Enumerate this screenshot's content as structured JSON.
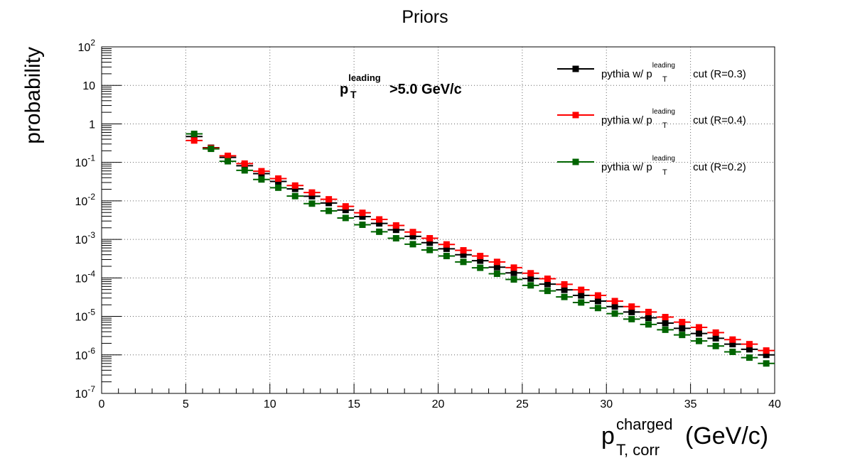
{
  "chart_data": {
    "type": "scatter",
    "title": "Priors",
    "xlabel_base": "p",
    "xlabel_sup": "charged",
    "xlabel_sub": "T, corr",
    "xlabel_units": "(GeV/c)",
    "ylabel": "probability",
    "annotation": {
      "base": "p",
      "sup": "leading",
      "sub": "T",
      "rest": ">5.0 GeV/c"
    },
    "xlim": [
      0,
      40
    ],
    "ylim": [
      1e-07,
      100
    ],
    "yscale": "log",
    "grid": true,
    "legend_position": "top-right",
    "x_ticks": [
      0,
      5,
      10,
      15,
      20,
      25,
      30,
      35,
      40
    ],
    "y_ticks": [
      {
        "value": 1e-07,
        "base": "10",
        "exp": "-7"
      },
      {
        "value": 1e-06,
        "base": "10",
        "exp": "-6"
      },
      {
        "value": 1e-05,
        "base": "10",
        "exp": "-5"
      },
      {
        "value": 0.0001,
        "base": "10",
        "exp": "-4"
      },
      {
        "value": 0.001,
        "base": "10",
        "exp": "-3"
      },
      {
        "value": 0.01,
        "base": "10",
        "exp": "-2"
      },
      {
        "value": 0.1,
        "base": "10",
        "exp": "-1"
      },
      {
        "value": 1,
        "base": "1",
        "exp": ""
      },
      {
        "value": 10,
        "base": "10",
        "exp": ""
      },
      {
        "value": 100,
        "base": "10",
        "exp": "2"
      }
    ],
    "bin_width": 1,
    "x": [
      5.5,
      6.5,
      7.5,
      8.5,
      9.5,
      10.5,
      11.5,
      12.5,
      13.5,
      14.5,
      15.5,
      16.5,
      17.5,
      18.5,
      19.5,
      20.5,
      21.5,
      22.5,
      23.5,
      24.5,
      25.5,
      26.5,
      27.5,
      28.5,
      29.5,
      30.5,
      31.5,
      32.5,
      33.5,
      34.5,
      35.5,
      36.5,
      37.5,
      38.5,
      39.5
    ],
    "series": [
      {
        "legend_base": "pythia w/ p",
        "legend_sup": "leading",
        "legend_sub": "T",
        "legend_rest": " cut (R=0.3)",
        "color": "#000000",
        "values": [
          0.47,
          0.24,
          0.135,
          0.082,
          0.051,
          0.032,
          0.0205,
          0.0132,
          0.0088,
          0.0058,
          0.0039,
          0.0026,
          0.00177,
          0.0012,
          0.00082,
          0.00057,
          0.0004,
          0.00028,
          0.00019,
          0.000135,
          9.6e-05,
          6.9e-05,
          4.9e-05,
          3.5e-05,
          2.5e-05,
          1.8e-05,
          1.3e-05,
          9.2e-06,
          6.7e-06,
          4.9e-06,
          3.6e-06,
          2.7e-06,
          1.9e-06,
          1.4e-06,
          1e-06
        ]
      },
      {
        "legend_base": "pythia w/ p",
        "legend_sup": "leading",
        "legend_sub": "T",
        "legend_rest": " cut (R=0.4)",
        "color": "#ff0000",
        "values": [
          0.37,
          0.235,
          0.148,
          0.093,
          0.059,
          0.038,
          0.025,
          0.0165,
          0.011,
          0.0072,
          0.0049,
          0.0033,
          0.0023,
          0.00155,
          0.00107,
          0.00074,
          0.00052,
          0.00037,
          0.00026,
          0.000185,
          0.000132,
          9.5e-05,
          6.8e-05,
          4.9e-05,
          3.5e-05,
          2.5e-05,
          1.8e-05,
          1.3e-05,
          9.6e-06,
          7.1e-06,
          5.2e-06,
          3.8e-06,
          2.5e-06,
          1.9e-06,
          1.3e-06
        ]
      },
      {
        "legend_base": "pythia w/ p",
        "legend_sup": "leading",
        "legend_sub": "T",
        "legend_rest": " cut (R=0.2)",
        "color": "#006400",
        "values": [
          0.55,
          0.225,
          0.107,
          0.062,
          0.036,
          0.022,
          0.0133,
          0.0085,
          0.0055,
          0.0036,
          0.0024,
          0.00158,
          0.00107,
          0.00075,
          0.00053,
          0.00037,
          0.00026,
          0.000183,
          0.000128,
          9.1e-05,
          6.4e-05,
          4.6e-05,
          3.2e-05,
          2.3e-05,
          1.65e-05,
          1.18e-05,
          8.5e-06,
          6.2e-06,
          4.5e-06,
          3.3e-06,
          2.3e-06,
          1.7e-06,
          1.2e-06,
          8.5e-07,
          6e-07
        ]
      }
    ]
  }
}
